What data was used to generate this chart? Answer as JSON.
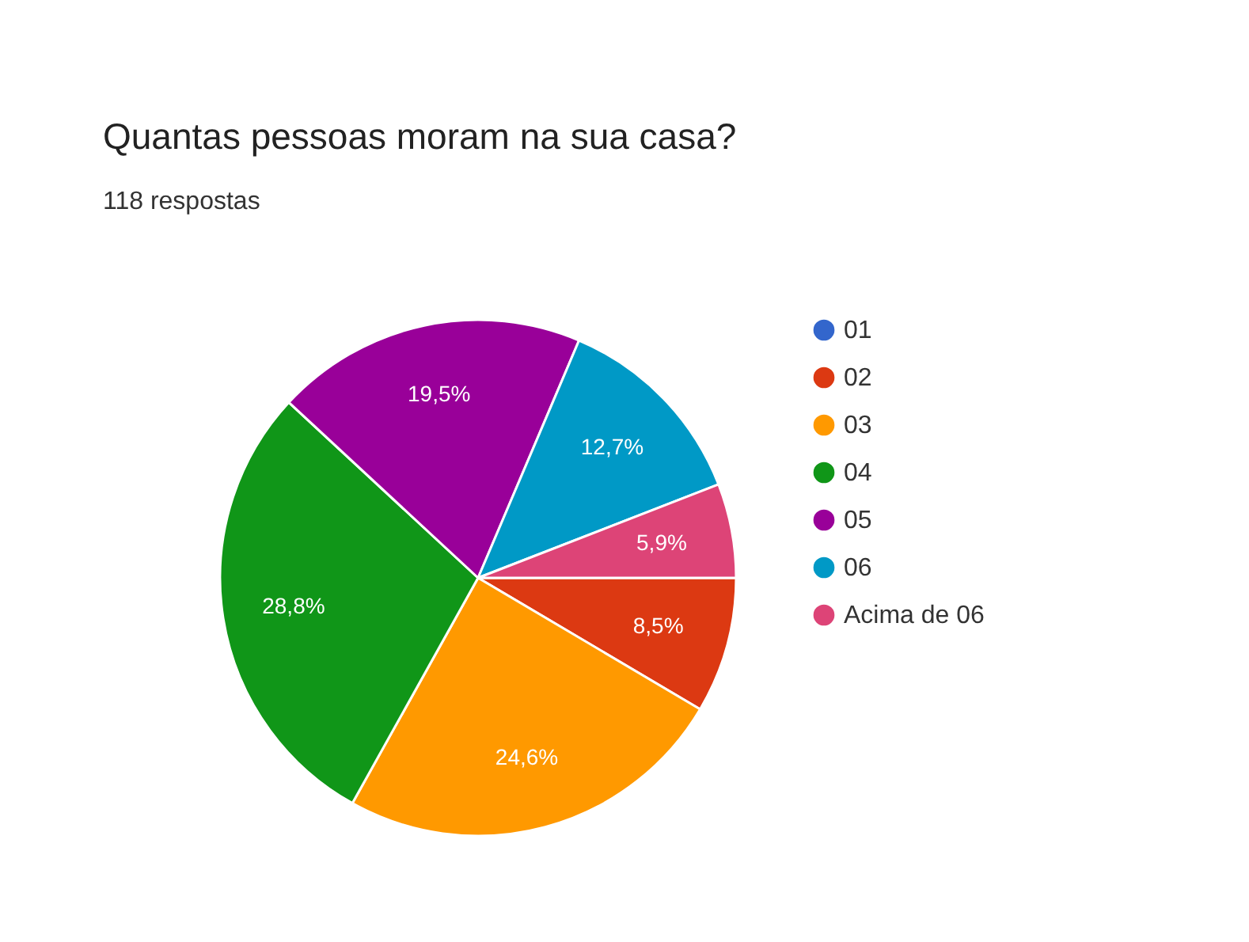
{
  "chart_data": {
    "type": "pie",
    "title": "Quantas pessoas moram na sua casa?",
    "subtitle": "118 respostas",
    "categories": [
      "01",
      "02",
      "03",
      "04",
      "05",
      "06",
      "Acima de 06"
    ],
    "values": [
      0,
      8.5,
      24.6,
      28.8,
      19.5,
      12.7,
      5.9
    ],
    "colors": [
      "#3366cc",
      "#dc3912",
      "#ff9900",
      "#109618",
      "#990099",
      "#0099c6",
      "#dd4477"
    ],
    "value_labels": [
      null,
      "8,5%",
      "24,6%",
      "28,8%",
      "19,5%",
      "12,7%",
      "5,9%"
    ],
    "legend": "right"
  }
}
